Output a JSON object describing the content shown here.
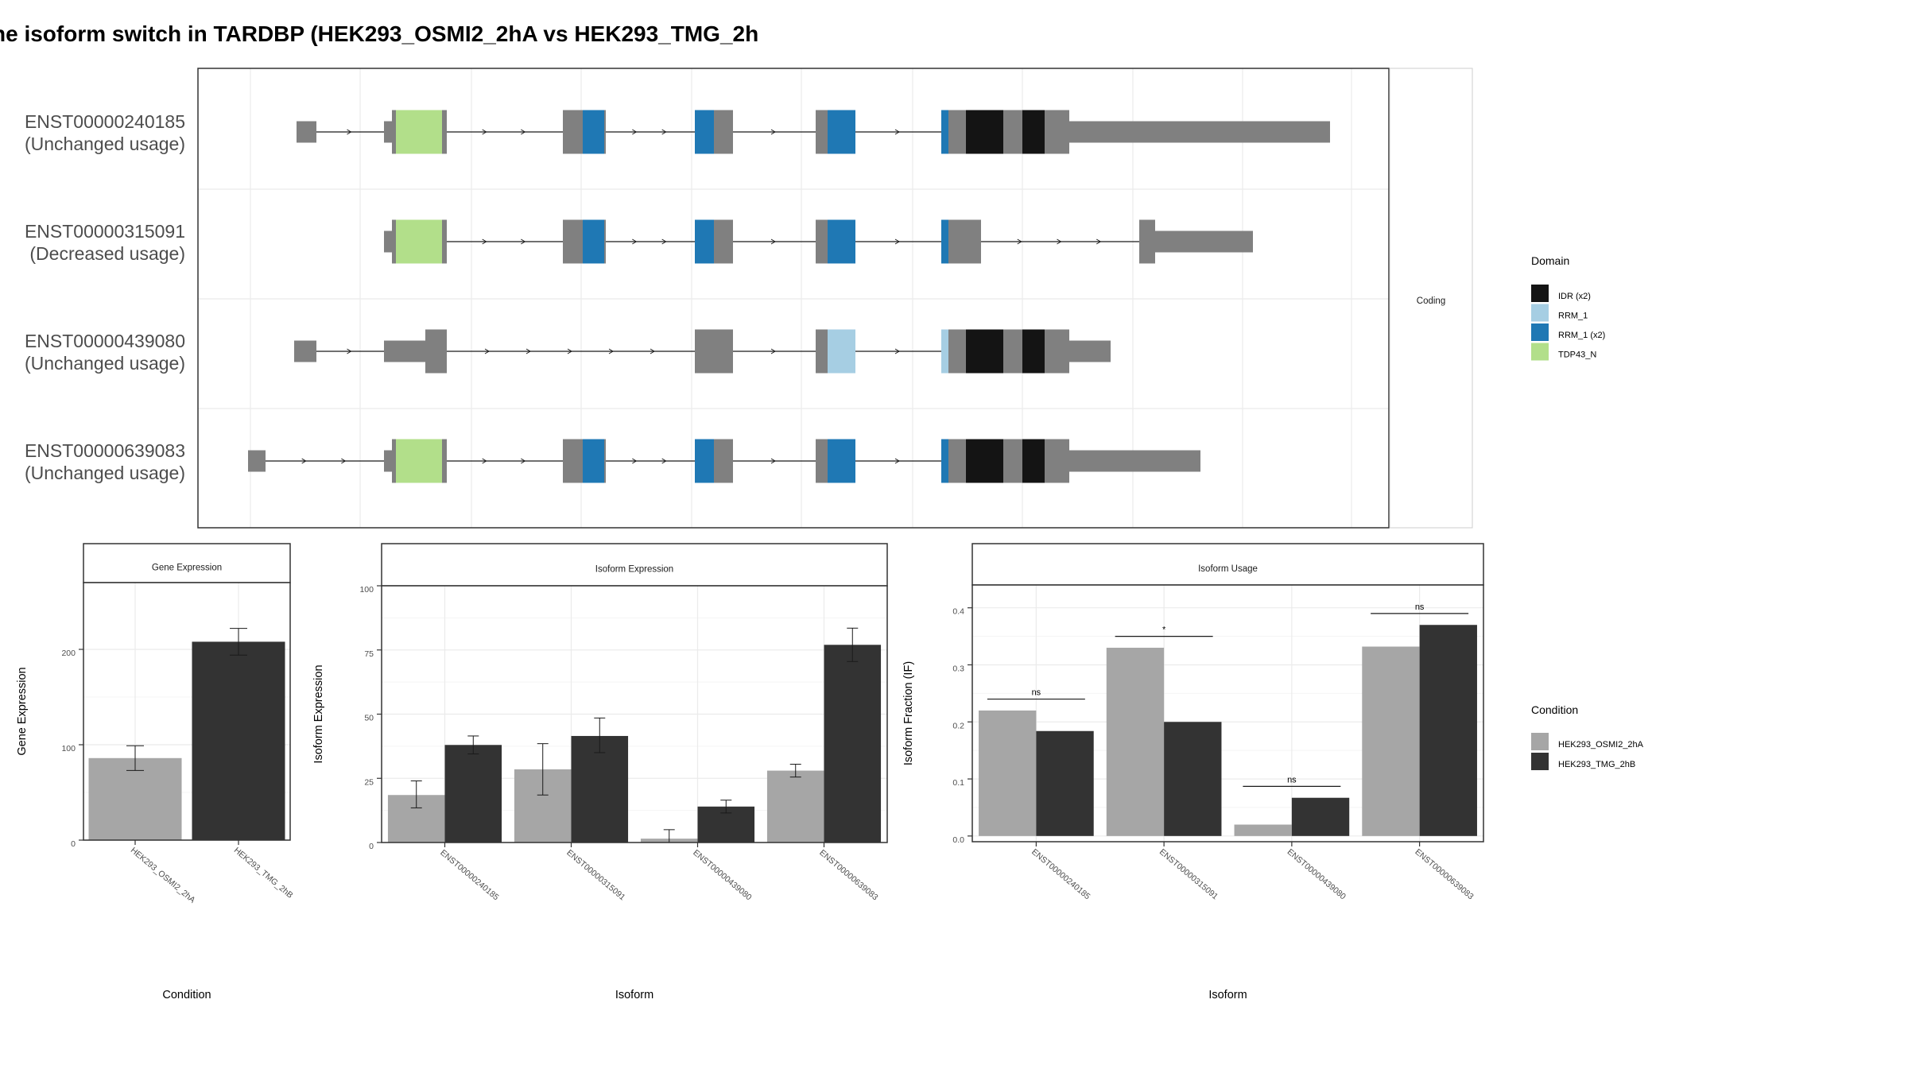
{
  "title": "ne isoform switch in TARDBP (HEK293_OSMI2_2hA vs HEK293_TMG_2h",
  "colors": {
    "exon": "#808080",
    "condition_a": "#a6a6a6",
    "condition_b": "#333333",
    "grid": "#ebebeb",
    "panel_border": "#333333"
  },
  "transcript_panel": {
    "strip_label": "Coding",
    "transcripts": [
      {
        "id": "ENST00000240185",
        "status": "(Unchanged usage)"
      },
      {
        "id": "ENST00000315091",
        "status": "(Decreased usage)"
      },
      {
        "id": "ENST00000439080",
        "status": "(Unchanged usage)"
      },
      {
        "id": "ENST00000639083",
        "status": "(Unchanged usage)"
      }
    ]
  },
  "domain_legend": {
    "title": "Domain",
    "items": [
      {
        "label": "IDR (x2)",
        "color": "#141414"
      },
      {
        "label": "RRM_1",
        "color": "#a6cee3"
      },
      {
        "label": "RRM_1 (x2)",
        "color": "#1f78b4"
      },
      {
        "label": "TDP43_N",
        "color": "#b2df8a"
      }
    ]
  },
  "condition_legend": {
    "title": "Condition",
    "items": [
      {
        "label": "HEK293_OSMI2_2hA",
        "color": "#a6a6a6"
      },
      {
        "label": "HEK293_TMG_2hB",
        "color": "#333333"
      }
    ]
  },
  "chart_data": [
    {
      "type": "bar",
      "title": "Gene Expression",
      "xlabel": "Condition",
      "ylabel": "Gene Expression",
      "categories": [
        "HEK293_OSMI2_2hA",
        "HEK293_TMG_2hB"
      ],
      "values": [
        86,
        208
      ],
      "errors": [
        [
          73,
          99
        ],
        [
          194,
          222
        ]
      ],
      "ylim": [
        0,
        270
      ],
      "yticks": [
        0,
        100,
        200
      ]
    },
    {
      "type": "bar",
      "title": "Isoform Expression",
      "xlabel": "Isoform",
      "ylabel": "Isoform Expression",
      "categories": [
        "ENST00000240185",
        "ENST00000315091",
        "ENST00000439080",
        "ENST00000639083"
      ],
      "series": [
        {
          "name": "HEK293_OSMI2_2hA",
          "values": [
            18.5,
            28.5,
            1.5,
            28
          ],
          "errors": [
            [
              13.5,
              24
            ],
            [
              18.5,
              38.5
            ],
            [
              0,
              5
            ],
            [
              25.5,
              30.5
            ]
          ]
        },
        {
          "name": "HEK293_TMG_2hB",
          "values": [
            38,
            41.5,
            14,
            77
          ],
          "errors": [
            [
              34.5,
              41.5
            ],
            [
              35,
              48.5
            ],
            [
              11.5,
              16.5
            ],
            [
              70.5,
              83.5
            ]
          ]
        }
      ],
      "ylim": [
        0,
        100
      ],
      "yticks": [
        0,
        25,
        50,
        75,
        100
      ]
    },
    {
      "type": "bar",
      "title": "Isoform Usage",
      "xlabel": "Isoform",
      "ylabel": "Isoform Fraction (IF)",
      "categories": [
        "ENST00000240185",
        "ENST00000315091",
        "ENST00000439080",
        "ENST00000639083"
      ],
      "series": [
        {
          "name": "HEK293_OSMI2_2hA",
          "values": [
            0.22,
            0.33,
            0.02,
            0.332
          ]
        },
        {
          "name": "HEK293_TMG_2hB",
          "values": [
            0.184,
            0.2,
            0.067,
            0.37
          ]
        }
      ],
      "significance": [
        "ns",
        "*",
        "ns",
        "ns"
      ],
      "ylim": [
        -0.01,
        0.44
      ],
      "yticks": [
        0.0,
        0.1,
        0.2,
        0.3,
        0.4
      ]
    }
  ]
}
